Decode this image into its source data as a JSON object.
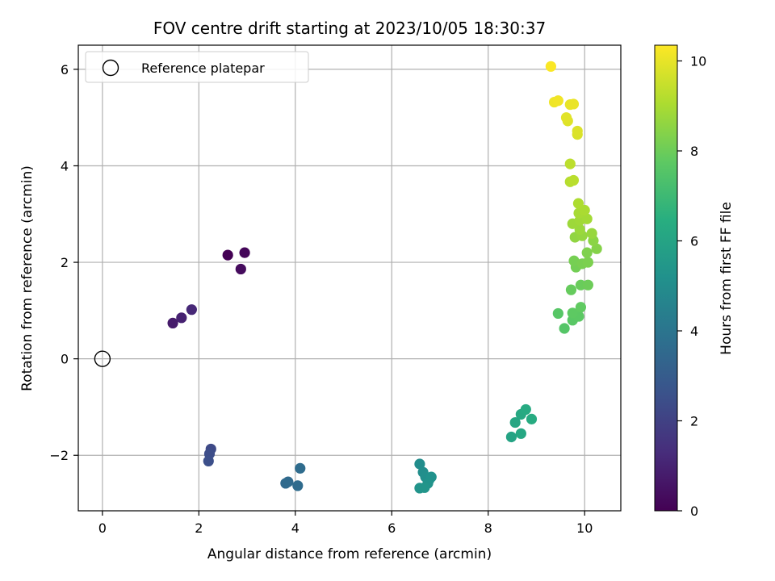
{
  "chart_data": {
    "type": "scatter",
    "title": "FOV centre drift starting at 2023/10/05 18:30:37",
    "xlabel": "Angular distance from reference (arcmin)",
    "ylabel": "Rotation from reference (arcmin)",
    "xlim": [
      -0.5,
      10.75
    ],
    "ylim": [
      -3.15,
      6.5
    ],
    "xticks": [
      0,
      2,
      4,
      6,
      8,
      10
    ],
    "xtick_labels": [
      "0",
      "2",
      "4",
      "6",
      "8",
      "10"
    ],
    "yticks": [
      -2,
      0,
      2,
      4,
      6
    ],
    "ytick_labels": [
      "−2",
      "0",
      "2",
      "4",
      "6"
    ],
    "grid": true,
    "legend": {
      "position": "top-left",
      "entries": [
        "Reference platepar"
      ]
    },
    "reference_point": {
      "x": 0,
      "y": 0,
      "label": "Reference platepar"
    },
    "colorbar": {
      "label": "Hours from first FF file",
      "colormap": "viridis",
      "range": [
        0,
        10.35
      ],
      "ticks": [
        0,
        2,
        4,
        6,
        8,
        10
      ],
      "tick_labels": [
        "0",
        "2",
        "4",
        "6",
        "8",
        "10"
      ]
    },
    "points": [
      {
        "x": 2.6,
        "y": 2.15,
        "c": 0.0
      },
      {
        "x": 2.95,
        "y": 2.2,
        "c": 0.15
      },
      {
        "x": 2.87,
        "y": 1.86,
        "c": 0.3
      },
      {
        "x": 1.46,
        "y": 0.74,
        "c": 0.75
      },
      {
        "x": 1.64,
        "y": 0.85,
        "c": 0.95
      },
      {
        "x": 1.85,
        "y": 1.02,
        "c": 1.15
      },
      {
        "x": 2.25,
        "y": -1.87,
        "c": 2.3
      },
      {
        "x": 2.22,
        "y": -1.97,
        "c": 2.4
      },
      {
        "x": 2.2,
        "y": -2.12,
        "c": 2.5
      },
      {
        "x": 3.8,
        "y": -2.58,
        "c": 3.5
      },
      {
        "x": 3.85,
        "y": -2.55,
        "c": 3.55
      },
      {
        "x": 4.05,
        "y": -2.63,
        "c": 3.6
      },
      {
        "x": 4.1,
        "y": -2.27,
        "c": 3.65
      },
      {
        "x": 6.58,
        "y": -2.18,
        "c": 5.0
      },
      {
        "x": 6.65,
        "y": -2.35,
        "c": 5.05
      },
      {
        "x": 6.7,
        "y": -2.45,
        "c": 5.1
      },
      {
        "x": 6.78,
        "y": -2.5,
        "c": 5.15
      },
      {
        "x": 6.82,
        "y": -2.45,
        "c": 5.2
      },
      {
        "x": 6.75,
        "y": -2.58,
        "c": 5.25
      },
      {
        "x": 6.58,
        "y": -2.68,
        "c": 5.3
      },
      {
        "x": 6.68,
        "y": -2.67,
        "c": 5.35
      },
      {
        "x": 8.48,
        "y": -1.62,
        "c": 6.0
      },
      {
        "x": 8.56,
        "y": -1.32,
        "c": 6.1
      },
      {
        "x": 8.68,
        "y": -1.55,
        "c": 6.15
      },
      {
        "x": 8.68,
        "y": -1.15,
        "c": 6.2
      },
      {
        "x": 8.78,
        "y": -1.05,
        "c": 6.3
      },
      {
        "x": 8.9,
        "y": -1.25,
        "c": 6.35
      },
      {
        "x": 9.58,
        "y": 0.63,
        "c": 7.55
      },
      {
        "x": 9.45,
        "y": 0.94,
        "c": 7.6
      },
      {
        "x": 9.75,
        "y": 0.8,
        "c": 7.65
      },
      {
        "x": 9.88,
        "y": 0.88,
        "c": 7.7
      },
      {
        "x": 9.75,
        "y": 0.95,
        "c": 7.75
      },
      {
        "x": 9.92,
        "y": 1.07,
        "c": 7.8
      },
      {
        "x": 9.72,
        "y": 1.43,
        "c": 7.9
      },
      {
        "x": 9.92,
        "y": 1.53,
        "c": 7.95
      },
      {
        "x": 10.07,
        "y": 1.53,
        "c": 8.0
      },
      {
        "x": 9.82,
        "y": 1.9,
        "c": 8.1
      },
      {
        "x": 9.78,
        "y": 2.03,
        "c": 8.15
      },
      {
        "x": 9.95,
        "y": 1.97,
        "c": 8.2
      },
      {
        "x": 10.07,
        "y": 2.0,
        "c": 8.25
      },
      {
        "x": 10.05,
        "y": 2.2,
        "c": 8.3
      },
      {
        "x": 10.25,
        "y": 2.28,
        "c": 8.4
      },
      {
        "x": 10.18,
        "y": 2.45,
        "c": 8.5
      },
      {
        "x": 9.8,
        "y": 2.52,
        "c": 8.6
      },
      {
        "x": 9.95,
        "y": 2.55,
        "c": 8.65
      },
      {
        "x": 10.15,
        "y": 2.6,
        "c": 8.7
      },
      {
        "x": 9.9,
        "y": 2.68,
        "c": 8.75
      },
      {
        "x": 9.75,
        "y": 2.8,
        "c": 8.8
      },
      {
        "x": 9.9,
        "y": 2.87,
        "c": 8.85
      },
      {
        "x": 10.05,
        "y": 2.9,
        "c": 8.9
      },
      {
        "x": 9.88,
        "y": 3.02,
        "c": 8.95
      },
      {
        "x": 10.0,
        "y": 3.08,
        "c": 9.0
      },
      {
        "x": 9.87,
        "y": 3.22,
        "c": 9.05
      },
      {
        "x": 9.7,
        "y": 3.67,
        "c": 9.2
      },
      {
        "x": 9.77,
        "y": 3.7,
        "c": 9.25
      },
      {
        "x": 9.7,
        "y": 4.04,
        "c": 9.3
      },
      {
        "x": 9.85,
        "y": 4.65,
        "c": 9.75
      },
      {
        "x": 9.85,
        "y": 4.72,
        "c": 9.8
      },
      {
        "x": 9.65,
        "y": 4.93,
        "c": 9.85
      },
      {
        "x": 9.62,
        "y": 5.0,
        "c": 9.9
      },
      {
        "x": 9.7,
        "y": 5.27,
        "c": 10.0
      },
      {
        "x": 9.77,
        "y": 5.28,
        "c": 10.05
      },
      {
        "x": 9.37,
        "y": 5.32,
        "c": 10.1
      },
      {
        "x": 9.45,
        "y": 5.35,
        "c": 10.15
      },
      {
        "x": 9.3,
        "y": 6.06,
        "c": 10.3
      }
    ]
  }
}
